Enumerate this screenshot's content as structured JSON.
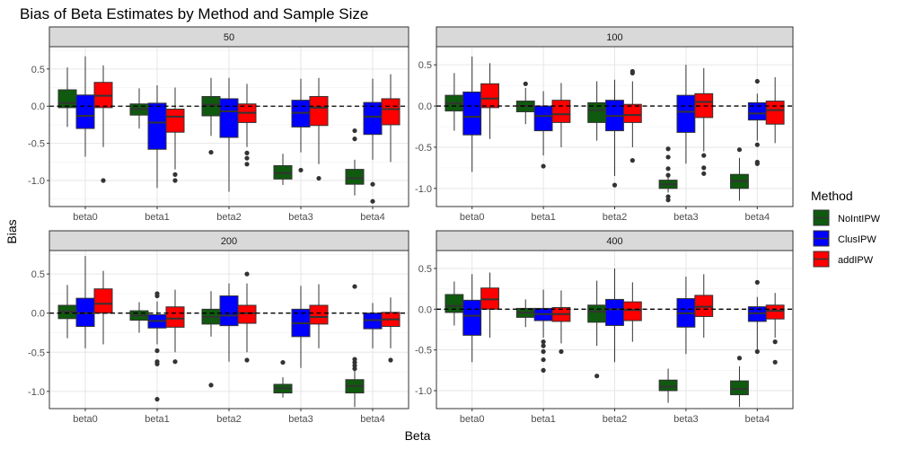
{
  "chart_data": {
    "type": "boxplot",
    "title": "Bias of Beta Estimates by Method and Sample Size",
    "xlabel": "Beta",
    "ylabel": "Bias",
    "categories": [
      "beta0",
      "beta1",
      "beta2",
      "beta3",
      "beta4"
    ],
    "yticks": [
      "-1.0",
      "-0.5",
      "0.0",
      "0.5"
    ],
    "reference_line": 0,
    "legend": {
      "title": "Method",
      "position": "right",
      "entries": [
        {
          "name": "NoIntIPW",
          "color": "#0f5a0f"
        },
        {
          "name": "ClusIPW",
          "color": "#0000ff"
        },
        {
          "name": "addIPW",
          "color": "#ff0000"
        }
      ]
    },
    "facets": [
      {
        "label": "50",
        "ylim": [
          -1.35,
          0.8
        ],
        "boxes": {
          "beta0": [
            {
              "min": -0.28,
              "q1": -0.02,
              "median": 0.04,
              "q3": 0.22,
              "max": 0.52,
              "outliers": []
            },
            {
              "min": -0.68,
              "q1": -0.3,
              "median": -0.13,
              "q3": 0.15,
              "max": 0.67,
              "outliers": []
            },
            {
              "min": -0.55,
              "q1": -0.02,
              "median": 0.14,
              "q3": 0.32,
              "max": 0.55,
              "outliers": [
                -1.0
              ]
            }
          ],
          "beta1": [
            {
              "min": -0.3,
              "q1": -0.12,
              "median": -0.04,
              "q3": 0.03,
              "max": 0.24,
              "outliers": []
            },
            {
              "min": -1.1,
              "q1": -0.58,
              "median": -0.22,
              "q3": 0.04,
              "max": 0.28,
              "outliers": []
            },
            {
              "min": -0.85,
              "q1": -0.35,
              "median": -0.14,
              "q3": -0.04,
              "max": 0.25,
              "outliers": [
                -0.92,
                -1.0
              ]
            }
          ],
          "beta2": [
            {
              "min": -0.4,
              "q1": -0.13,
              "median": 0.02,
              "q3": 0.13,
              "max": 0.38,
              "outliers": [
                -0.62
              ]
            },
            {
              "min": -1.15,
              "q1": -0.42,
              "median": -0.07,
              "q3": 0.1,
              "max": 0.38,
              "outliers": []
            },
            {
              "min": -0.55,
              "q1": -0.22,
              "median": -0.09,
              "q3": 0.03,
              "max": 0.3,
              "outliers": [
                -0.63,
                -0.7,
                -0.78
              ]
            }
          ],
          "beta3": [
            {
              "min": -1.06,
              "q1": -0.98,
              "median": -0.9,
              "q3": -0.8,
              "max": -0.64,
              "outliers": []
            },
            {
              "min": -0.62,
              "q1": -0.28,
              "median": -0.09,
              "q3": 0.08,
              "max": 0.37,
              "outliers": [
                -0.86
              ]
            },
            {
              "min": -0.78,
              "q1": -0.26,
              "median": -0.02,
              "q3": 0.13,
              "max": 0.38,
              "outliers": [
                -0.97
              ]
            }
          ],
          "beta4": [
            {
              "min": -1.2,
              "q1": -1.05,
              "median": -0.97,
              "q3": -0.85,
              "max": -0.72,
              "outliers": [
                -0.33,
                -0.44
              ]
            },
            {
              "min": -0.72,
              "q1": -0.38,
              "median": -0.14,
              "q3": 0.05,
              "max": 0.37,
              "outliers": [
                -1.05,
                -1.28
              ]
            },
            {
              "min": -0.75,
              "q1": -0.25,
              "median": -0.04,
              "q3": 0.1,
              "max": 0.43,
              "outliers": []
            }
          ]
        }
      },
      {
        "label": "100",
        "ylim": [
          -1.22,
          0.72
        ],
        "boxes": {
          "beta0": [
            {
              "min": -0.3,
              "q1": -0.06,
              "median": 0.03,
              "q3": 0.13,
              "max": 0.4,
              "outliers": []
            },
            {
              "min": -0.8,
              "q1": -0.35,
              "median": -0.13,
              "q3": 0.17,
              "max": 0.6,
              "outliers": []
            },
            {
              "min": -0.4,
              "q1": -0.02,
              "median": 0.09,
              "q3": 0.27,
              "max": 0.52,
              "outliers": []
            }
          ],
          "beta1": [
            {
              "min": -0.22,
              "q1": -0.07,
              "median": 0.0,
              "q3": 0.06,
              "max": 0.22,
              "outliers": [
                0.27
              ]
            },
            {
              "min": -0.6,
              "q1": -0.3,
              "median": -0.12,
              "q3": 0.0,
              "max": 0.18,
              "outliers": [
                -0.73
              ]
            },
            {
              "min": -0.5,
              "q1": -0.2,
              "median": -0.1,
              "q3": 0.07,
              "max": 0.28,
              "outliers": []
            }
          ],
          "beta2": [
            {
              "min": -0.42,
              "q1": -0.2,
              "median": -0.05,
              "q3": 0.04,
              "max": 0.3,
              "outliers": []
            },
            {
              "min": -0.85,
              "q1": -0.3,
              "median": -0.12,
              "q3": 0.07,
              "max": 0.32,
              "outliers": [
                -0.96
              ]
            },
            {
              "min": -0.5,
              "q1": -0.2,
              "median": -0.11,
              "q3": 0.02,
              "max": 0.3,
              "outliers": [
                0.4,
                0.42,
                -0.66
              ]
            }
          ],
          "beta3": [
            {
              "min": -1.05,
              "q1": -1.0,
              "median": -0.95,
              "q3": -0.9,
              "max": -0.83,
              "outliers": [
                -0.52,
                -0.62,
                -0.76,
                -0.84,
                -1.1,
                -1.14
              ]
            },
            {
              "min": -0.7,
              "q1": -0.32,
              "median": -0.07,
              "q3": 0.13,
              "max": 0.5,
              "outliers": []
            },
            {
              "min": -0.55,
              "q1": -0.14,
              "median": 0.05,
              "q3": 0.15,
              "max": 0.46,
              "outliers": [
                -0.6,
                -0.75,
                -0.82
              ]
            }
          ],
          "beta4": [
            {
              "min": -1.15,
              "q1": -1.0,
              "median": -0.91,
              "q3": -0.83,
              "max": -0.63,
              "outliers": [
                -0.53
              ]
            },
            {
              "min": -0.42,
              "q1": -0.17,
              "median": -0.09,
              "q3": 0.04,
              "max": 0.15,
              "outliers": [
                0.3,
                -0.47,
                -0.68,
                -0.7
              ]
            },
            {
              "min": -0.45,
              "q1": -0.22,
              "median": -0.05,
              "q3": 0.06,
              "max": 0.35,
              "outliers": []
            }
          ]
        }
      },
      {
        "label": "200",
        "ylim": [
          -1.22,
          0.8
        ],
        "boxes": {
          "beta0": [
            {
              "min": -0.32,
              "q1": -0.07,
              "median": 0.02,
              "q3": 0.1,
              "max": 0.36,
              "outliers": []
            },
            {
              "min": -0.45,
              "q1": -0.17,
              "median": 0.0,
              "q3": 0.19,
              "max": 0.73,
              "outliers": []
            },
            {
              "min": -0.4,
              "q1": 0.0,
              "median": 0.12,
              "q3": 0.31,
              "max": 0.54,
              "outliers": []
            }
          ],
          "beta1": [
            {
              "min": -0.25,
              "q1": -0.09,
              "median": -0.03,
              "q3": 0.03,
              "max": 0.14,
              "outliers": []
            },
            {
              "min": -0.4,
              "q1": -0.19,
              "median": -0.1,
              "q3": -0.02,
              "max": 0.15,
              "outliers": [
                0.25,
                0.22,
                -0.48,
                -0.62,
                -0.65,
                -1.1
              ]
            },
            {
              "min": -0.5,
              "q1": -0.18,
              "median": -0.07,
              "q3": 0.08,
              "max": 0.3,
              "outliers": [
                -0.62
              ]
            }
          ],
          "beta2": [
            {
              "min": -0.3,
              "q1": -0.14,
              "median": -0.05,
              "q3": 0.05,
              "max": 0.28,
              "outliers": [
                -0.92
              ]
            },
            {
              "min": -0.62,
              "q1": -0.16,
              "median": -0.03,
              "q3": 0.22,
              "max": 0.38,
              "outliers": []
            },
            {
              "min": -0.5,
              "q1": -0.13,
              "median": 0.0,
              "q3": 0.1,
              "max": 0.38,
              "outliers": [
                0.5,
                -0.6
              ]
            }
          ],
          "beta3": [
            {
              "min": -1.08,
              "q1": -1.02,
              "median": -0.96,
              "q3": -0.91,
              "max": -0.82,
              "outliers": [
                -0.63
              ]
            },
            {
              "min": -0.7,
              "q1": -0.3,
              "median": -0.13,
              "q3": 0.05,
              "max": 0.35,
              "outliers": []
            },
            {
              "min": -0.45,
              "q1": -0.14,
              "median": -0.05,
              "q3": 0.1,
              "max": 0.37,
              "outliers": []
            }
          ],
          "beta4": [
            {
              "min": -1.2,
              "q1": -1.02,
              "median": -0.93,
              "q3": -0.85,
              "max": -0.72,
              "outliers": [
                0.34,
                -0.59,
                -0.63,
                -0.67,
                -0.71
              ]
            },
            {
              "min": -0.45,
              "q1": -0.2,
              "median": -0.09,
              "q3": 0.0,
              "max": 0.13,
              "outliers": []
            },
            {
              "min": -0.45,
              "q1": -0.17,
              "median": -0.08,
              "q3": 0.01,
              "max": 0.2,
              "outliers": [
                -0.6
              ]
            }
          ]
        }
      },
      {
        "label": "400",
        "ylim": [
          -1.22,
          0.72
        ],
        "boxes": {
          "beta0": [
            {
              "min": -0.2,
              "q1": -0.04,
              "median": 0.04,
              "q3": 0.18,
              "max": 0.34,
              "outliers": []
            },
            {
              "min": -0.65,
              "q1": -0.32,
              "median": -0.08,
              "q3": 0.11,
              "max": 0.43,
              "outliers": []
            },
            {
              "min": -0.35,
              "q1": 0.0,
              "median": 0.12,
              "q3": 0.26,
              "max": 0.45,
              "outliers": []
            }
          ],
          "beta1": [
            {
              "min": -0.22,
              "q1": -0.1,
              "median": -0.04,
              "q3": 0.01,
              "max": 0.12,
              "outliers": []
            },
            {
              "min": -0.35,
              "q1": -0.14,
              "median": -0.06,
              "q3": 0.01,
              "max": 0.24,
              "outliers": [
                -0.4,
                -0.45,
                -0.52,
                -0.62,
                -0.75
              ]
            },
            {
              "min": -0.42,
              "q1": -0.15,
              "median": -0.06,
              "q3": 0.02,
              "max": 0.23,
              "outliers": [
                -0.52
              ]
            }
          ],
          "beta2": [
            {
              "min": -0.45,
              "q1": -0.16,
              "median": -0.03,
              "q3": 0.05,
              "max": 0.35,
              "outliers": [
                -0.82
              ]
            },
            {
              "min": -0.65,
              "q1": -0.2,
              "median": 0.0,
              "q3": 0.12,
              "max": 0.5,
              "outliers": []
            },
            {
              "min": -0.4,
              "q1": -0.14,
              "median": -0.01,
              "q3": 0.09,
              "max": 0.33,
              "outliers": []
            }
          ],
          "beta3": [
            {
              "min": -1.15,
              "q1": -1.0,
              "median": -0.95,
              "q3": -0.87,
              "max": -0.73,
              "outliers": []
            },
            {
              "min": -0.55,
              "q1": -0.22,
              "median": -0.05,
              "q3": 0.13,
              "max": 0.4,
              "outliers": []
            },
            {
              "min": -0.35,
              "q1": -0.09,
              "median": 0.03,
              "q3": 0.17,
              "max": 0.43,
              "outliers": []
            }
          ],
          "beta4": [
            {
              "min": -1.2,
              "q1": -1.05,
              "median": -0.98,
              "q3": -0.88,
              "max": -0.7,
              "outliers": [
                -0.6
              ]
            },
            {
              "min": -0.5,
              "q1": -0.15,
              "median": -0.05,
              "q3": 0.03,
              "max": 0.15,
              "outliers": [
                0.33,
                -0.52
              ]
            },
            {
              "min": -0.35,
              "q1": -0.12,
              "median": -0.02,
              "q3": 0.05,
              "max": 0.2,
              "outliers": [
                -0.4,
                -0.65
              ]
            }
          ]
        }
      }
    ]
  }
}
